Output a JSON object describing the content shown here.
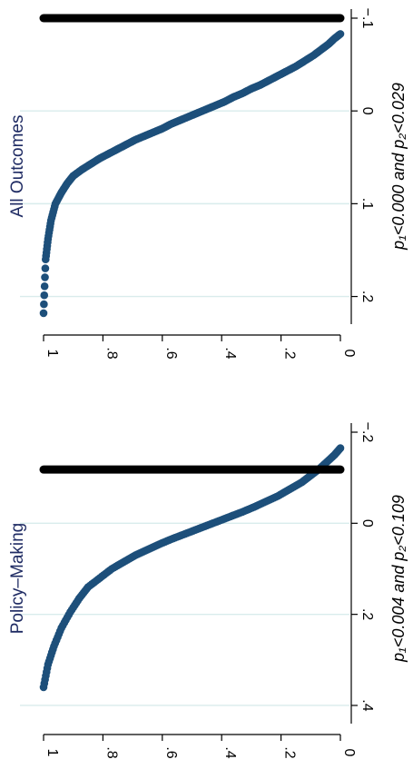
{
  "chart_data": [
    {
      "type": "scatter",
      "title": "All Outcomes",
      "xlabel": "p₁<0.000 and p₂<0.029",
      "xlim": [
        -0.1,
        0.22
      ],
      "ylim": [
        0,
        1
      ],
      "xticks": [
        -0.1,
        0,
        0.1,
        0.2
      ],
      "xtick_labels": [
        "−.1",
        "0",
        ".1",
        ".2"
      ],
      "yticks": [
        0,
        0.2,
        0.4,
        0.6,
        0.8,
        1
      ],
      "ytick_labels": [
        "0",
        ".2",
        ".4",
        ".6",
        ".8",
        "1"
      ],
      "grid": true,
      "series": [
        {
          "color": "#1d4f7a",
          "x": [
            -0.083,
            -0.078,
            -0.072,
            -0.066,
            -0.06,
            -0.054,
            -0.048,
            -0.043,
            -0.038,
            -0.033,
            -0.028,
            -0.024,
            -0.019,
            -0.015,
            -0.01,
            -0.006,
            -0.002,
            0.002,
            0.006,
            0.01,
            0.014,
            0.019,
            0.023,
            0.027,
            0.031,
            0.036,
            0.041,
            0.046,
            0.051,
            0.057,
            0.063,
            0.07,
            0.078,
            0.088,
            0.1,
            0.118,
            0.138,
            0.16,
            0.218
          ],
          "y": [
            0.0,
            0.02,
            0.04,
            0.065,
            0.09,
            0.12,
            0.15,
            0.18,
            0.21,
            0.24,
            0.27,
            0.3,
            0.33,
            0.36,
            0.39,
            0.42,
            0.45,
            0.48,
            0.51,
            0.54,
            0.57,
            0.6,
            0.63,
            0.66,
            0.69,
            0.72,
            0.75,
            0.78,
            0.81,
            0.84,
            0.87,
            0.9,
            0.92,
            0.94,
            0.96,
            0.975,
            0.985,
            0.993,
            1.0
          ]
        },
        {
          "color": "#000000",
          "x": [
            -0.1,
            -0.1
          ],
          "y": [
            0.0,
            1.0
          ]
        }
      ]
    },
    {
      "type": "scatter",
      "title": "Policy–Making",
      "xlabel": "p₁<0.004 and p₂<0.109",
      "xlim": [
        -0.21,
        0.42
      ],
      "ylim": [
        0,
        1
      ],
      "xticks": [
        -0.2,
        0,
        0.2,
        0.4
      ],
      "xtick_labels": [
        "−.2",
        "0",
        ".2",
        ".4"
      ],
      "yticks": [
        0,
        0.2,
        0.4,
        0.6,
        0.8,
        1
      ],
      "ytick_labels": [
        "0",
        ".2",
        ".4",
        ".6",
        ".8",
        "1"
      ],
      "grid": true,
      "series": [
        {
          "color": "#1d4f7a",
          "x": [
            -0.165,
            -0.15,
            -0.135,
            -0.12,
            -0.105,
            -0.09,
            -0.075,
            -0.06,
            -0.048,
            -0.036,
            -0.025,
            -0.015,
            -0.005,
            0.005,
            0.015,
            0.025,
            0.035,
            0.046,
            0.058,
            0.07,
            0.085,
            0.1,
            0.12,
            0.14,
            0.165,
            0.195,
            0.23,
            0.27,
            0.31,
            0.36
          ],
          "y": [
            0.0,
            0.02,
            0.045,
            0.07,
            0.1,
            0.13,
            0.17,
            0.21,
            0.25,
            0.29,
            0.33,
            0.37,
            0.41,
            0.45,
            0.49,
            0.53,
            0.57,
            0.61,
            0.65,
            0.69,
            0.73,
            0.77,
            0.81,
            0.85,
            0.88,
            0.91,
            0.94,
            0.965,
            0.985,
            1.0
          ]
        },
        {
          "color": "#000000",
          "x": [
            -0.118,
            -0.118
          ],
          "y": [
            0.0,
            1.0
          ]
        }
      ]
    }
  ]
}
